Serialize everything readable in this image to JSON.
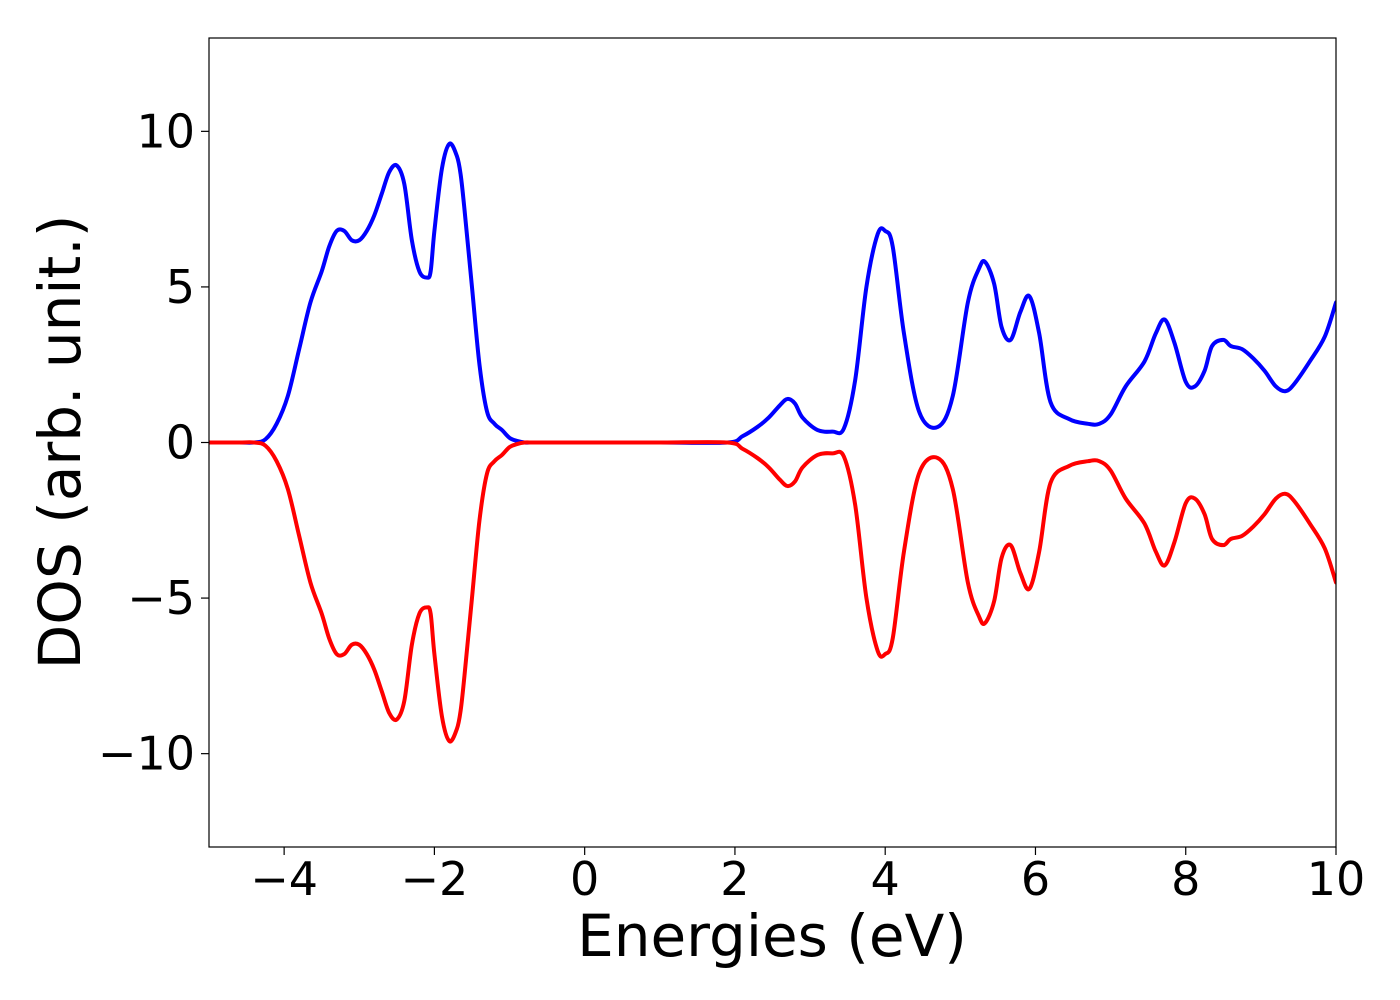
{
  "chart_data": {
    "type": "line",
    "title": "",
    "xlabel": "Energies (eV)",
    "ylabel": "DOS (arb. unit.)",
    "xlim": [
      -5,
      10
    ],
    "ylim": [
      -13,
      13
    ],
    "xticks": [
      -4,
      -2,
      0,
      2,
      4,
      6,
      8,
      10
    ],
    "xtick_labels": [
      "−4",
      "−2",
      "0",
      "2",
      "4",
      "6",
      "8",
      "10"
    ],
    "yticks": [
      10,
      5,
      0,
      -5,
      -10
    ],
    "ytick_labels": [
      "10",
      "5",
      "0",
      "−5",
      "−10"
    ],
    "grid": false,
    "legend": "none",
    "series": [
      {
        "color": "#0000ff",
        "x": [
          -5.0,
          -4.6,
          -4.4,
          -4.25,
          -4.1,
          -3.95,
          -3.8,
          -3.65,
          -3.5,
          -3.4,
          -3.3,
          -3.2,
          -3.1,
          -3.0,
          -2.9,
          -2.8,
          -2.7,
          -2.6,
          -2.5,
          -2.4,
          -2.3,
          -2.2,
          -2.1,
          -2.05,
          -2.0,
          -1.9,
          -1.8,
          -1.7,
          -1.65,
          -1.6,
          -1.5,
          -1.4,
          -1.3,
          -1.2,
          -1.1,
          -1.0,
          -0.9,
          -0.8,
          -0.7,
          -0.6,
          -0.5,
          0.0,
          1.0,
          1.9,
          2.1,
          2.3,
          2.45,
          2.6,
          2.7,
          2.8,
          2.9,
          3.1,
          3.3,
          3.45,
          3.6,
          3.75,
          3.9,
          4.0,
          4.1,
          4.25,
          4.45,
          4.7,
          4.9,
          5.1,
          5.25,
          5.33,
          5.45,
          5.55,
          5.67,
          5.8,
          5.92,
          6.05,
          6.2,
          6.45,
          6.7,
          6.85,
          7.0,
          7.2,
          7.45,
          7.6,
          7.72,
          7.85,
          8.0,
          8.12,
          8.25,
          8.35,
          8.5,
          8.6,
          8.75,
          8.9,
          9.05,
          9.2,
          9.33,
          9.45,
          9.65,
          9.85,
          10.0
        ],
        "values": [
          0,
          0,
          0,
          0.1,
          0.6,
          1.5,
          3.0,
          4.5,
          5.5,
          6.3,
          6.8,
          6.8,
          6.5,
          6.5,
          6.8,
          7.3,
          8.0,
          8.7,
          8.9,
          8.3,
          6.5,
          5.5,
          5.3,
          5.5,
          6.8,
          8.8,
          9.6,
          9.2,
          8.6,
          7.5,
          5.0,
          2.5,
          1.0,
          0.6,
          0.4,
          0.15,
          0.05,
          0,
          0,
          0,
          0,
          0,
          0,
          0,
          0.2,
          0.5,
          0.8,
          1.2,
          1.4,
          1.25,
          0.8,
          0.4,
          0.35,
          0.45,
          2.0,
          5.0,
          6.7,
          6.8,
          6.3,
          3.5,
          1.0,
          0.5,
          1.5,
          4.5,
          5.6,
          5.8,
          5.1,
          3.7,
          3.3,
          4.2,
          4.7,
          3.5,
          1.3,
          0.75,
          0.6,
          0.6,
          0.9,
          1.8,
          2.6,
          3.5,
          3.95,
          3.2,
          1.95,
          1.8,
          2.3,
          3.1,
          3.3,
          3.1,
          3.0,
          2.7,
          2.3,
          1.8,
          1.65,
          1.9,
          2.6,
          3.4,
          4.5
        ]
      },
      {
        "color": "#ff0000",
        "x": [
          -5.0,
          -4.6,
          -4.4,
          -4.25,
          -4.1,
          -3.95,
          -3.8,
          -3.65,
          -3.5,
          -3.4,
          -3.3,
          -3.2,
          -3.1,
          -3.0,
          -2.9,
          -2.8,
          -2.7,
          -2.6,
          -2.5,
          -2.4,
          -2.3,
          -2.2,
          -2.1,
          -2.05,
          -2.0,
          -1.9,
          -1.8,
          -1.7,
          -1.65,
          -1.6,
          -1.5,
          -1.4,
          -1.3,
          -1.2,
          -1.1,
          -1.0,
          -0.9,
          -0.8,
          -0.7,
          -0.6,
          -0.5,
          0.0,
          1.0,
          1.9,
          2.1,
          2.3,
          2.45,
          2.6,
          2.7,
          2.8,
          2.9,
          3.1,
          3.3,
          3.45,
          3.6,
          3.75,
          3.9,
          4.0,
          4.1,
          4.25,
          4.45,
          4.7,
          4.9,
          5.1,
          5.25,
          5.33,
          5.45,
          5.55,
          5.67,
          5.8,
          5.92,
          6.05,
          6.2,
          6.45,
          6.7,
          6.85,
          7.0,
          7.2,
          7.45,
          7.6,
          7.72,
          7.85,
          8.0,
          8.12,
          8.25,
          8.35,
          8.5,
          8.6,
          8.75,
          8.9,
          9.05,
          9.2,
          9.33,
          9.45,
          9.65,
          9.85,
          10.0
        ],
        "values": [
          0,
          0,
          0,
          -0.1,
          -0.6,
          -1.5,
          -3.0,
          -4.5,
          -5.5,
          -6.3,
          -6.8,
          -6.8,
          -6.5,
          -6.5,
          -6.8,
          -7.3,
          -8.0,
          -8.7,
          -8.9,
          -8.3,
          -6.5,
          -5.5,
          -5.3,
          -5.5,
          -6.8,
          -8.8,
          -9.6,
          -9.2,
          -8.6,
          -7.5,
          -5.0,
          -2.5,
          -1.0,
          -0.6,
          -0.4,
          -0.15,
          -0.05,
          0,
          0,
          0,
          0,
          0,
          0,
          0,
          -0.2,
          -0.5,
          -0.8,
          -1.2,
          -1.4,
          -1.25,
          -0.8,
          -0.4,
          -0.35,
          -0.45,
          -2.0,
          -5.0,
          -6.7,
          -6.8,
          -6.3,
          -3.5,
          -1.0,
          -0.5,
          -1.5,
          -4.5,
          -5.6,
          -5.8,
          -5.1,
          -3.7,
          -3.3,
          -4.2,
          -4.7,
          -3.5,
          -1.3,
          -0.75,
          -0.6,
          -0.6,
          -0.9,
          -1.8,
          -2.6,
          -3.5,
          -3.95,
          -3.2,
          -1.95,
          -1.8,
          -2.3,
          -3.1,
          -3.3,
          -3.1,
          -3.0,
          -2.7,
          -2.3,
          -1.8,
          -1.65,
          -1.9,
          -2.6,
          -3.4,
          -4.5
        ]
      }
    ]
  }
}
